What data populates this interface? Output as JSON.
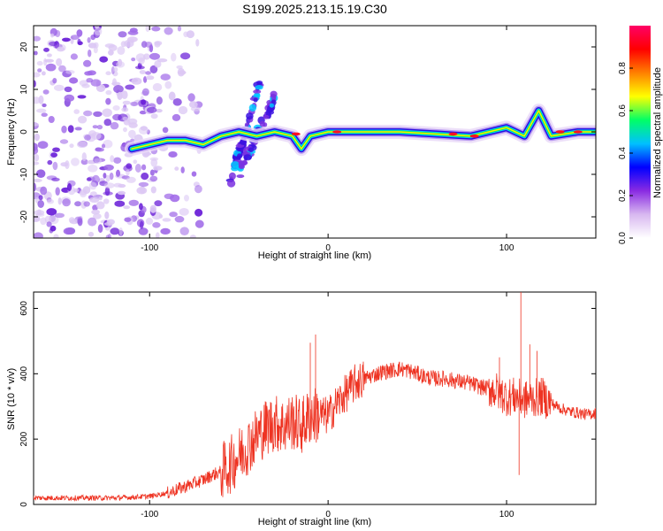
{
  "figure": {
    "title": "S199.2025.213.15.19.C30"
  },
  "colors": {
    "snr_line": "#ee3322",
    "axes": "#000000",
    "background": "#ffffff"
  },
  "chart_data": [
    {
      "type": "heatmap",
      "name": "spectrogram",
      "xlabel": "Height of straight line (km)",
      "ylabel": "Frequency (Hz)",
      "xlim": [
        -165,
        150
      ],
      "ylim": [
        -25,
        25
      ],
      "x_ticks": [
        -100,
        0,
        100
      ],
      "y_ticks": [
        -20,
        -10,
        0,
        10,
        20
      ],
      "grid": false,
      "colorbar": {
        "label": "Normalized spectral amplitude",
        "range": [
          0.0,
          1.0
        ],
        "ticks": [
          0.0,
          0.2,
          0.4,
          0.6,
          0.8
        ],
        "colormap": [
          "#ffffff",
          "#d8b8f0",
          "#8a2be2",
          "#0000ff",
          "#00c0ff",
          "#00ff66",
          "#ffff00",
          "#ff8000",
          "#ff0000",
          "#ff0066"
        ]
      },
      "signal_track": [
        {
          "x": -110,
          "f": -4
        },
        {
          "x": -100,
          "f": -3
        },
        {
          "x": -90,
          "f": -2
        },
        {
          "x": -80,
          "f": -2
        },
        {
          "x": -70,
          "f": -3
        },
        {
          "x": -60,
          "f": -1
        },
        {
          "x": -50,
          "f": 0
        },
        {
          "x": -40,
          "f": -1
        },
        {
          "x": -30,
          "f": 0
        },
        {
          "x": -20,
          "f": -1
        },
        {
          "x": -15,
          "f": -4
        },
        {
          "x": -10,
          "f": -1
        },
        {
          "x": 0,
          "f": 0
        },
        {
          "x": 20,
          "f": 0
        },
        {
          "x": 40,
          "f": 0
        },
        {
          "x": 60,
          "f": -0.5
        },
        {
          "x": 80,
          "f": -1
        },
        {
          "x": 90,
          "f": 0
        },
        {
          "x": 100,
          "f": 1
        },
        {
          "x": 110,
          "f": -1
        },
        {
          "x": 118,
          "f": 5
        },
        {
          "x": 125,
          "f": -1
        },
        {
          "x": 140,
          "f": 0
        },
        {
          "x": 150,
          "f": 0
        }
      ],
      "noise_region": {
        "x": [
          -165,
          -95
        ],
        "f": [
          -25,
          25
        ]
      },
      "dispersed_branches": [
        {
          "x": [
            -55,
            -38
          ],
          "f": [
            -12,
            12
          ]
        },
        {
          "x": [
            -50,
            -30
          ],
          "f": [
            -10,
            8
          ]
        }
      ]
    },
    {
      "type": "line",
      "name": "snr",
      "xlabel": "Height of straight line (km)",
      "ylabel": "SNR (10 * v/v)",
      "xlim": [
        -165,
        150
      ],
      "ylim": [
        0,
        650
      ],
      "x_ticks": [
        -100,
        0,
        100
      ],
      "y_ticks": [
        0,
        200,
        400,
        600
      ],
      "grid": false,
      "series": [
        {
          "x": [
            -165,
            -150,
            -140,
            -130,
            -120,
            -110,
            -100,
            -95,
            -90,
            -85,
            -80,
            -75,
            -70,
            -65,
            -60,
            -55,
            -50,
            -45,
            -40,
            -35,
            -30,
            -25,
            -20,
            -15,
            -10,
            -5,
            0,
            5,
            10,
            15,
            20,
            25,
            30,
            35,
            40,
            45,
            50,
            55,
            60,
            65,
            70,
            75,
            80,
            85,
            90,
            95,
            100,
            105,
            110,
            115,
            120,
            125,
            130,
            135,
            140,
            145,
            150
          ],
          "y": [
            20,
            20,
            20,
            20,
            20,
            22,
            25,
            30,
            35,
            45,
            55,
            65,
            75,
            90,
            100,
            120,
            150,
            180,
            210,
            235,
            250,
            240,
            255,
            240,
            270,
            275,
            270,
            310,
            340,
            370,
            385,
            395,
            405,
            410,
            415,
            410,
            400,
            390,
            385,
            385,
            380,
            375,
            370,
            360,
            355,
            345,
            330,
            330,
            320,
            325,
            330,
            310,
            295,
            285,
            280,
            275,
            280
          ]
        }
      ],
      "spikes": [
        {
          "x": -7,
          "y": 520
        },
        {
          "x": -10,
          "y": 495
        },
        {
          "x": 108,
          "y": 650
        },
        {
          "x": 113,
          "y": 490
        },
        {
          "x": 117,
          "y": 470
        },
        {
          "x": 107,
          "y": 90
        },
        {
          "x": 96,
          "y": 450
        }
      ]
    }
  ]
}
